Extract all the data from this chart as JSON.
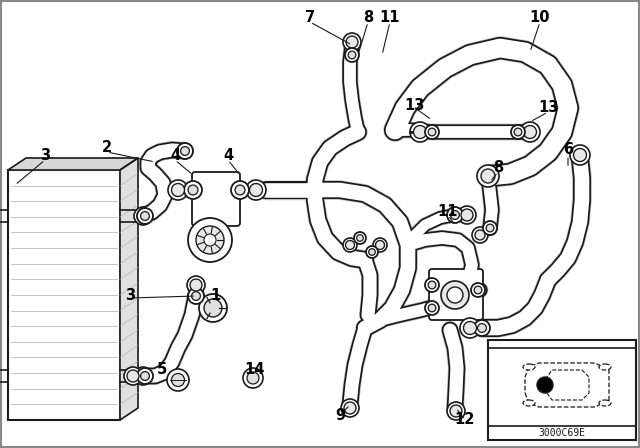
{
  "bg_color": "#ffffff",
  "line_color": "#1a1a1a",
  "fig_width": 6.4,
  "fig_height": 4.48,
  "dpi": 100,
  "inset_code": "3000C69E",
  "labels": [
    [
      "3",
      55,
      148
    ],
    [
      "2",
      107,
      148
    ],
    [
      "4",
      175,
      148
    ],
    [
      "4",
      228,
      148
    ],
    [
      "7",
      310,
      12
    ],
    [
      "8",
      358,
      12
    ],
    [
      "11",
      385,
      12
    ],
    [
      "10",
      526,
      12
    ],
    [
      "13",
      408,
      105
    ],
    [
      "13",
      535,
      105
    ],
    [
      "6",
      565,
      148
    ],
    [
      "8",
      490,
      168
    ],
    [
      "11",
      455,
      208
    ],
    [
      "3",
      130,
      295
    ],
    [
      "1",
      213,
      295
    ],
    [
      "5",
      178,
      360
    ],
    [
      "14",
      253,
      360
    ],
    [
      "9",
      368,
      360
    ],
    [
      "12",
      455,
      360
    ]
  ]
}
